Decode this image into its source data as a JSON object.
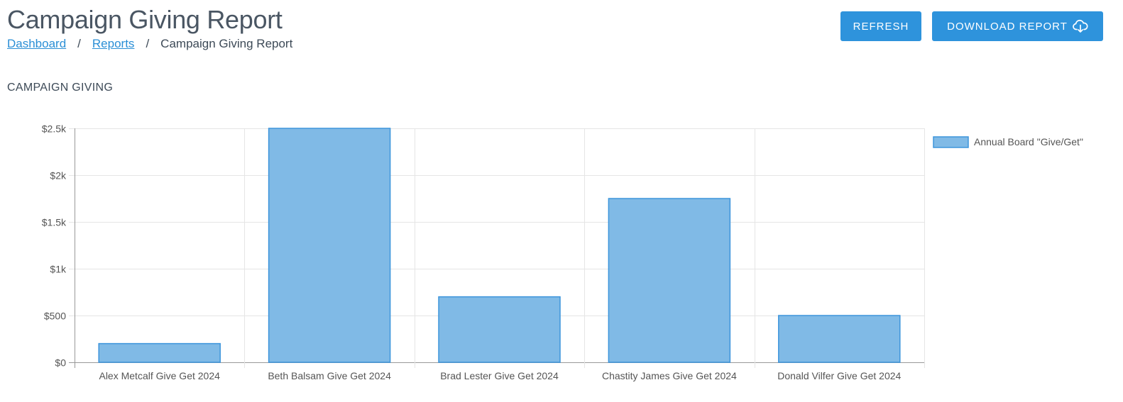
{
  "header": {
    "title": "Campaign Giving Report",
    "breadcrumb": {
      "dashboard": "Dashboard",
      "separator": "/",
      "reports": "Reports",
      "current": "Campaign Giving Report"
    },
    "refresh_label": "REFRESH",
    "download_label": "DOWNLOAD REPORT",
    "download_icon": "cloud-download-icon"
  },
  "section": {
    "title": "CAMPAIGN GIVING"
  },
  "colors": {
    "accent": "#2e93dc",
    "bar_fill": "#80bae6",
    "bar_stroke": "#3d95dc",
    "grid": "#e5e5e5"
  },
  "chart_data": {
    "type": "bar",
    "categories": [
      "Alex Metcalf Give Get 2024",
      "Beth Balsam Give Get 2024",
      "Brad Lester Give Get 2024",
      "Chastity James Give Get 2024",
      "Donald Vilfer Give Get 2024"
    ],
    "series": [
      {
        "name": "Annual Board \"Give/Get\"",
        "values": [
          200,
          2500,
          700,
          1750,
          500
        ]
      }
    ],
    "ylim": [
      0,
      2500
    ],
    "yticks": [
      0,
      500,
      1000,
      1500,
      2000,
      2500
    ],
    "ytick_labels": [
      "$0",
      "$500",
      "$1k",
      "$1.5k",
      "$2k",
      "$2.5k"
    ],
    "grid": true,
    "legend_position": "right"
  }
}
